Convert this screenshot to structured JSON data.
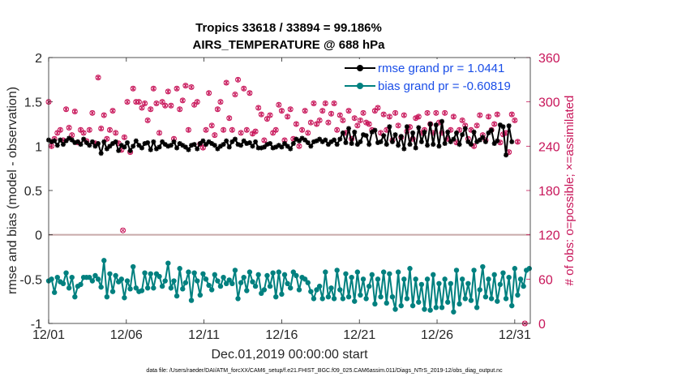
{
  "chart_data": {
    "type": "line",
    "title": "Tropics 33618 / 33894 = 99.186%",
    "subtitle": "AIRS_TEMPERATURE @ 688 hPa",
    "xlabel": "Dec.01,2019 00:00:00 start",
    "ylabel": "rmse and bias (model - observation)",
    "ylabel_right": "# of obs: o=possible; ×=assimilated",
    "footnote": "data file: /Users/raeder/DAI/ATM_forcXX/CAM6_setup/f.e21.FHIST_BGC.f09_025.CAM6assim.011/Diags_NTrS_2019-12/obs_diag_output.nc",
    "xlim": [
      1,
      32
    ],
    "ylim": [
      -1,
      2
    ],
    "ylim_right": [
      0,
      360
    ],
    "x_ticks": [
      1,
      6,
      11,
      16,
      21,
      26,
      31
    ],
    "x_tick_labels": [
      "12/01",
      "12/06",
      "12/11",
      "12/16",
      "12/21",
      "12/26",
      "12/31"
    ],
    "y_ticks": [
      -1,
      -0.5,
      0,
      0.5,
      1,
      1.5,
      2
    ],
    "y_tick_labels": [
      "-1",
      "-0.5",
      "0",
      "0.5",
      "1",
      "1.5",
      "2"
    ],
    "y_right_ticks": [
      0,
      60,
      120,
      180,
      240,
      300,
      360
    ],
    "y_right_tick_labels": [
      "0",
      "60",
      "120",
      "180",
      "240",
      "300",
      "360"
    ],
    "zero_line": 0,
    "series": [
      {
        "name": "rmse grand pr = 1.0441",
        "color": "#000000",
        "marker": "star",
        "values": [
          1.07,
          1.05,
          1.06,
          1.01,
          1.07,
          1.02,
          1.06,
          1.09,
          1.07,
          1.04,
          1.05,
          1.02,
          1.08,
          1.04,
          1.01,
          1.05,
          1.0,
          1.03,
          0.92,
          1.05,
          0.97,
          1.0,
          1.03,
          1.05,
          0.95,
          1.01,
          0.99,
          1.04,
          0.95,
          1.0,
          1.06,
          1.01,
          0.98,
          1.03,
          1.04,
          0.96,
          1.05,
          0.97,
          0.99,
          1.05,
          1.02,
          1.0,
          1.01,
          1.05,
          0.98,
          1.03,
          1.01,
          0.99,
          0.96,
          1.01,
          1.02,
          0.97,
          1.03,
          1.06,
          1.02,
          1.05,
          1.03,
          1.01,
          0.97,
          1.0,
          1.02,
          1.06,
          0.99,
          1.05,
          1.08,
          1.02,
          1.01,
          1.06,
          1.03,
          1.04,
          1.0,
          1.05,
          0.98,
          0.98,
          0.99,
          1.02,
          1.03,
          0.98,
          0.99,
          1.01,
          0.99,
          1.03,
          1.0,
          0.97,
          1.03,
          1.08,
          1.06,
          1.09,
          1.07,
          1.04,
          1.0,
          1.05,
          1.06,
          1.08,
          1.05,
          1.07,
          1.02,
          1.05,
          1.07,
          1.02,
          1.08,
          1.15,
          1.04,
          1.2,
          1.03,
          1.16,
          1.02,
          1.05,
          1.13,
          1.12,
          1.02,
          1.16,
          1.18,
          1.04,
          1.05,
          1.12,
          1.02,
          1.22,
          1.05,
          1.13,
          1.01,
          1.11,
          0.97,
          1.22,
          1.02,
          1.15,
          0.98,
          1.21,
          1.05,
          1.16,
          1.01,
          1.25,
          1.02,
          1.24,
          1.0,
          1.28,
          1.03,
          1.16,
          1.05,
          1.08,
          1.15,
          1.02,
          1.13,
          1.2,
          1.05,
          1.02,
          1.16,
          1.05,
          1.07,
          1.1,
          1.05,
          1.15,
          1.18,
          1.03,
          1.06,
          1.24,
          1.22,
          0.9,
          1.23,
          1.05
        ]
      },
      {
        "name": "bias grand pr = -0.60819",
        "color": "#00807f",
        "marker": "circle",
        "values": [
          -0.52,
          -0.5,
          -0.65,
          -0.48,
          -0.53,
          -0.55,
          -0.43,
          -0.6,
          -0.48,
          -0.7,
          -0.58,
          -0.56,
          -0.48,
          -0.48,
          -0.48,
          -0.52,
          -0.46,
          -0.5,
          -0.59,
          -0.29,
          -0.7,
          -0.44,
          -0.64,
          -0.46,
          -0.53,
          -0.5,
          -0.71,
          -0.52,
          -0.61,
          -0.36,
          -0.6,
          -0.64,
          -0.63,
          -0.43,
          -0.6,
          -0.44,
          -0.6,
          -0.44,
          -0.47,
          -0.58,
          -0.52,
          -0.32,
          -0.6,
          -0.52,
          -0.69,
          -0.38,
          -0.61,
          -0.54,
          -0.42,
          -0.74,
          -0.43,
          -0.52,
          -0.68,
          -0.44,
          -0.5,
          -0.57,
          -0.62,
          -0.45,
          -0.52,
          -0.58,
          -0.48,
          -0.55,
          -0.51,
          -0.55,
          -0.4,
          -0.72,
          -0.54,
          -0.48,
          -0.63,
          -0.42,
          -0.53,
          -0.58,
          -0.45,
          -0.66,
          -0.62,
          -0.46,
          -0.58,
          -0.43,
          -0.7,
          -0.42,
          -0.67,
          -0.45,
          -0.55,
          -0.6,
          -0.42,
          -0.46,
          -0.62,
          -0.48,
          -0.5,
          -0.54,
          -0.64,
          -0.72,
          -0.62,
          -0.58,
          -0.72,
          -0.42,
          -0.7,
          -0.6,
          -0.72,
          -0.4,
          -0.62,
          -0.72,
          -0.44,
          -0.7,
          -0.48,
          -0.75,
          -0.42,
          -0.68,
          -0.5,
          -0.72,
          -0.58,
          -0.45,
          -0.78,
          -0.5,
          -0.7,
          -0.42,
          -0.77,
          -0.44,
          -0.7,
          -0.84,
          -0.42,
          -0.8,
          -0.5,
          -0.72,
          -0.38,
          -0.8,
          -0.5,
          -0.76,
          -0.56,
          -0.84,
          -0.5,
          -0.85,
          -0.45,
          -0.82,
          -0.55,
          -0.82,
          -0.5,
          -0.76,
          -0.55,
          -0.87,
          -0.4,
          -0.78,
          -0.5,
          -0.72,
          -0.55,
          -0.74,
          -0.4,
          -0.82,
          -0.62,
          -0.36,
          -0.7,
          -0.5,
          -0.72,
          -0.45,
          -0.75,
          -0.56,
          -0.43,
          -0.72,
          -0.48,
          -0.8,
          -0.38,
          -0.68,
          -0.5,
          -0.58,
          -0.4,
          -0.38
        ]
      },
      {
        "name": "# of obs possible",
        "color": "#c8165a",
        "marker": "open-circle",
        "axis": "right",
        "values": [
          300,
          240,
          250,
          258,
          262,
          248,
          290,
          265,
          255,
          287,
          245,
          262,
          258,
          247,
          262,
          285,
          244,
          333,
          264,
          282,
          250,
          262,
          288,
          258,
          244,
          235,
          252,
          300,
          232,
          318,
          300,
          300,
          292,
          298,
          275,
          290,
          318,
          298,
          258,
          300,
          295,
          314,
          295,
          250,
          318,
          290,
          302,
          322,
          262,
          320,
          296,
          300,
          243,
          238,
          262,
          312,
          268,
          255,
          290,
          300,
          262,
          326,
          278,
          262,
          310,
          330,
          258,
          318,
          262,
          312,
          257,
          260,
          292,
          283,
          248,
          277,
          282,
          258,
          262,
          296,
          288,
          248,
          280,
          290,
          250,
          270,
          240,
          262,
          288,
          258,
          272,
          298,
          270,
          275,
          288,
          298,
          272,
          284,
          298,
          262,
          282,
          275,
          258,
          288,
          250,
          278,
          268,
          275,
          285,
          272,
          270,
          262,
          288,
          292,
          258,
          283,
          262,
          280,
          248,
          285,
          268,
          252,
          282,
          260,
          266,
          250,
          278,
          280,
          258,
          262,
          285,
          270,
          258,
          285,
          272,
          258,
          285,
          250,
          262,
          280,
          245,
          262,
          275,
          268,
          250,
          262,
          240,
          268,
          282,
          255,
          248,
          280,
          262,
          270,
          283,
          245,
          256,
          258,
          232,
          283,
          275,
          246
        ]
      },
      {
        "name": "# of obs assimilated",
        "color": "#c8165a",
        "marker": "x",
        "axis": "right",
        "values": [
          300,
          240,
          250,
          258,
          262,
          248,
          290,
          265,
          255,
          287,
          245,
          262,
          258,
          247,
          262,
          285,
          244,
          333,
          264,
          282,
          250,
          262,
          288,
          258,
          244,
          235,
          252,
          300,
          232,
          318,
          300,
          300,
          292,
          298,
          275,
          290,
          318,
          298,
          258,
          300,
          295,
          314,
          295,
          250,
          318,
          290,
          302,
          322,
          262,
          320,
          296,
          300,
          243,
          238,
          262,
          312,
          268,
          255,
          290,
          300,
          262,
          326,
          278,
          262,
          310,
          330,
          258,
          318,
          262,
          312,
          257,
          260,
          292,
          283,
          248,
          277,
          282,
          258,
          262,
          296,
          288,
          248,
          280,
          290,
          250,
          270,
          240,
          262,
          288,
          258,
          272,
          298,
          270,
          275,
          288,
          298,
          272,
          284,
          298,
          262,
          282,
          275,
          258,
          288,
          250,
          278,
          268,
          275,
          285,
          272,
          270,
          262,
          288,
          292,
          258,
          283,
          262,
          280,
          248,
          285,
          268,
          252,
          282,
          260,
          266,
          250,
          278,
          280,
          258,
          262,
          285,
          270,
          258,
          285,
          272,
          258,
          285,
          250,
          262,
          280,
          245,
          262,
          275,
          268,
          250,
          262,
          240,
          268,
          282,
          255,
          248,
          280,
          262,
          270,
          283,
          245,
          256,
          258,
          232,
          283,
          275,
          246
        ]
      }
    ]
  }
}
